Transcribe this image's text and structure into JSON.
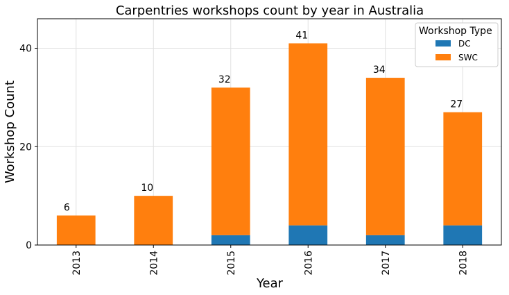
{
  "chart_data": {
    "type": "bar",
    "stacked": true,
    "title": "Carpentries workshops count by year in Australia",
    "xlabel": "Year",
    "ylabel": "Workshop Count",
    "categories": [
      "2013",
      "2014",
      "2015",
      "2016",
      "2017",
      "2018"
    ],
    "series": [
      {
        "name": "DC",
        "values": [
          0,
          0,
          2,
          4,
          2,
          4
        ],
        "color": "#1f77b4"
      },
      {
        "name": "SWC",
        "values": [
          6,
          10,
          30,
          37,
          32,
          23
        ],
        "color": "#ff7f0e"
      }
    ],
    "totals": [
      6,
      10,
      32,
      41,
      34,
      27
    ],
    "ylim": [
      0,
      46
    ],
    "yticks": [
      0,
      20,
      40
    ],
    "grid": true,
    "legend": {
      "title": "Workshop Type",
      "placement": "top-right"
    }
  }
}
